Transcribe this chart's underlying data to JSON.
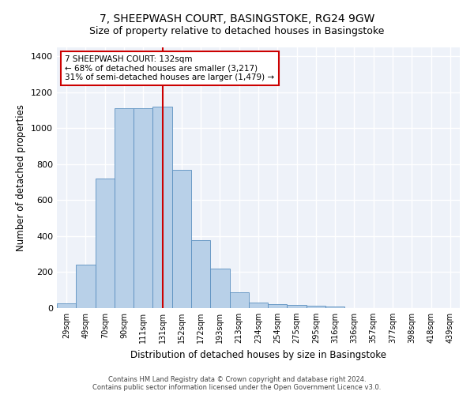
{
  "title": "7, SHEEPWASH COURT, BASINGSTOKE, RG24 9GW",
  "subtitle": "Size of property relative to detached houses in Basingstoke",
  "xlabel": "Distribution of detached houses by size in Basingstoke",
  "ylabel": "Number of detached properties",
  "categories": [
    "29sqm",
    "49sqm",
    "70sqm",
    "90sqm",
    "111sqm",
    "131sqm",
    "152sqm",
    "172sqm",
    "193sqm",
    "213sqm",
    "234sqm",
    "254sqm",
    "275sqm",
    "295sqm",
    "316sqm",
    "336sqm",
    "357sqm",
    "377sqm",
    "398sqm",
    "418sqm",
    "439sqm"
  ],
  "values": [
    25,
    240,
    720,
    1110,
    1110,
    1120,
    770,
    380,
    220,
    90,
    30,
    20,
    18,
    15,
    10,
    0,
    0,
    0,
    0,
    0,
    0
  ],
  "bar_color": "#b8d0e8",
  "bar_edge_color": "#5a8fc0",
  "property_line_x": 5.0,
  "property_line_color": "#cc0000",
  "annotation_line1": "7 SHEEPWASH COURT: 132sqm",
  "annotation_line2": "← 68% of detached houses are smaller (3,217)",
  "annotation_line3": "31% of semi-detached houses are larger (1,479) →",
  "annotation_box_color": "#cc0000",
  "annotation_fontsize": 7.5,
  "ylim": [
    0,
    1450
  ],
  "yticks": [
    0,
    200,
    400,
    600,
    800,
    1000,
    1200,
    1400
  ],
  "footer_line1": "Contains HM Land Registry data © Crown copyright and database right 2024.",
  "footer_line2": "Contains public sector information licensed under the Open Government Licence v3.0.",
  "background_color": "#eef2f9",
  "grid_color": "#ffffff",
  "title_fontsize": 10,
  "subtitle_fontsize": 9
}
